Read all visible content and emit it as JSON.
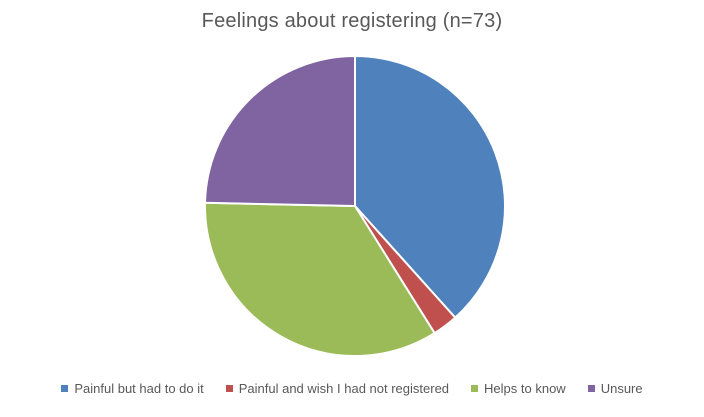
{
  "chart_data": {
    "type": "pie",
    "title": "Feelings about registering (n=73)",
    "categories": [
      "Painful but had to do it",
      "Painful and wish I had not registered",
      "Helps to know",
      "Unsure"
    ],
    "values": [
      28,
      2,
      25,
      18
    ],
    "colors": [
      "#4F81BD",
      "#C0504D",
      "#9BBB59",
      "#8064A2"
    ],
    "start_angle_deg": 0,
    "direction": "clockwise",
    "legend_position": "bottom"
  }
}
